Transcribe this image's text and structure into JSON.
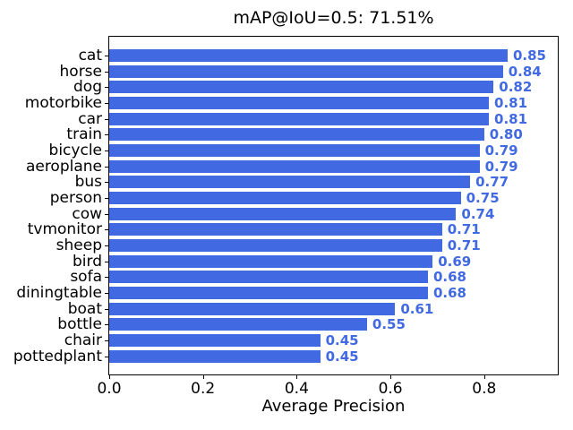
{
  "chart_data": {
    "type": "bar",
    "orientation": "horizontal",
    "title": "mAP@IoU=0.5: 71.51%",
    "xlabel": "Average Precision",
    "ylabel": "",
    "categories": [
      "cat",
      "horse",
      "dog",
      "motorbike",
      "car",
      "train",
      "bicycle",
      "aeroplane",
      "bus",
      "person",
      "cow",
      "tvmonitor",
      "sheep",
      "bird",
      "sofa",
      "diningtable",
      "boat",
      "bottle",
      "chair",
      "pottedplant"
    ],
    "values": [
      0.85,
      0.84,
      0.82,
      0.81,
      0.81,
      0.8,
      0.79,
      0.79,
      0.77,
      0.75,
      0.74,
      0.71,
      0.71,
      0.69,
      0.68,
      0.68,
      0.61,
      0.55,
      0.45,
      0.45
    ],
    "value_labels": [
      "0.85",
      "0.84",
      "0.82",
      "0.81",
      "0.81",
      "0.80",
      "0.79",
      "0.79",
      "0.77",
      "0.75",
      "0.74",
      "0.71",
      "0.71",
      "0.69",
      "0.68",
      "0.68",
      "0.61",
      "0.55",
      "0.45",
      "0.45"
    ],
    "xticks": {
      "values": [
        0.0,
        0.2,
        0.4,
        0.6,
        0.8
      ],
      "labels": [
        "0.0",
        "0.2",
        "0.4",
        "0.6",
        "0.8"
      ]
    },
    "xlim": [
      0,
      0.957
    ],
    "grid": false,
    "legend_position": "none",
    "bar_color": "#4169e1",
    "value_label_color": "#4169e1",
    "axis_color": "#000000",
    "text_color": "#000000"
  }
}
